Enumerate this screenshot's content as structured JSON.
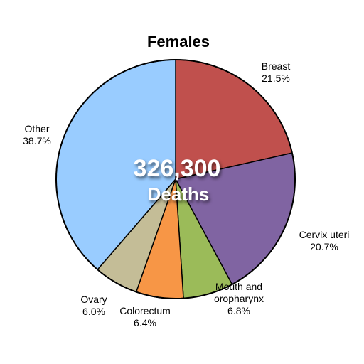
{
  "chart_data": {
    "type": "pie",
    "title": "Females",
    "center_total": "326,300",
    "center_caption": "Deaths",
    "start_angle_deg": 0,
    "direction": "clockwise",
    "slices": [
      {
        "label": "Breast",
        "value": 21.5,
        "value_label": "21.5%",
        "color": "#c0504d"
      },
      {
        "label": "Cervix uteri",
        "value": 20.7,
        "value_label": "20.7%",
        "color": "#8064a2"
      },
      {
        "label": "Mouth and oropharynx",
        "value": 6.8,
        "value_label": "6.8%",
        "color": "#9bbb59"
      },
      {
        "label": "Colorectum",
        "value": 6.4,
        "value_label": "6.4%",
        "color": "#f79646"
      },
      {
        "label": "Ovary",
        "value": 6.0,
        "value_label": "6.0%",
        "color": "#c4bd97"
      },
      {
        "label": "Other",
        "value": 38.7,
        "value_label": "38.7%",
        "color": "#99ccff"
      }
    ]
  }
}
